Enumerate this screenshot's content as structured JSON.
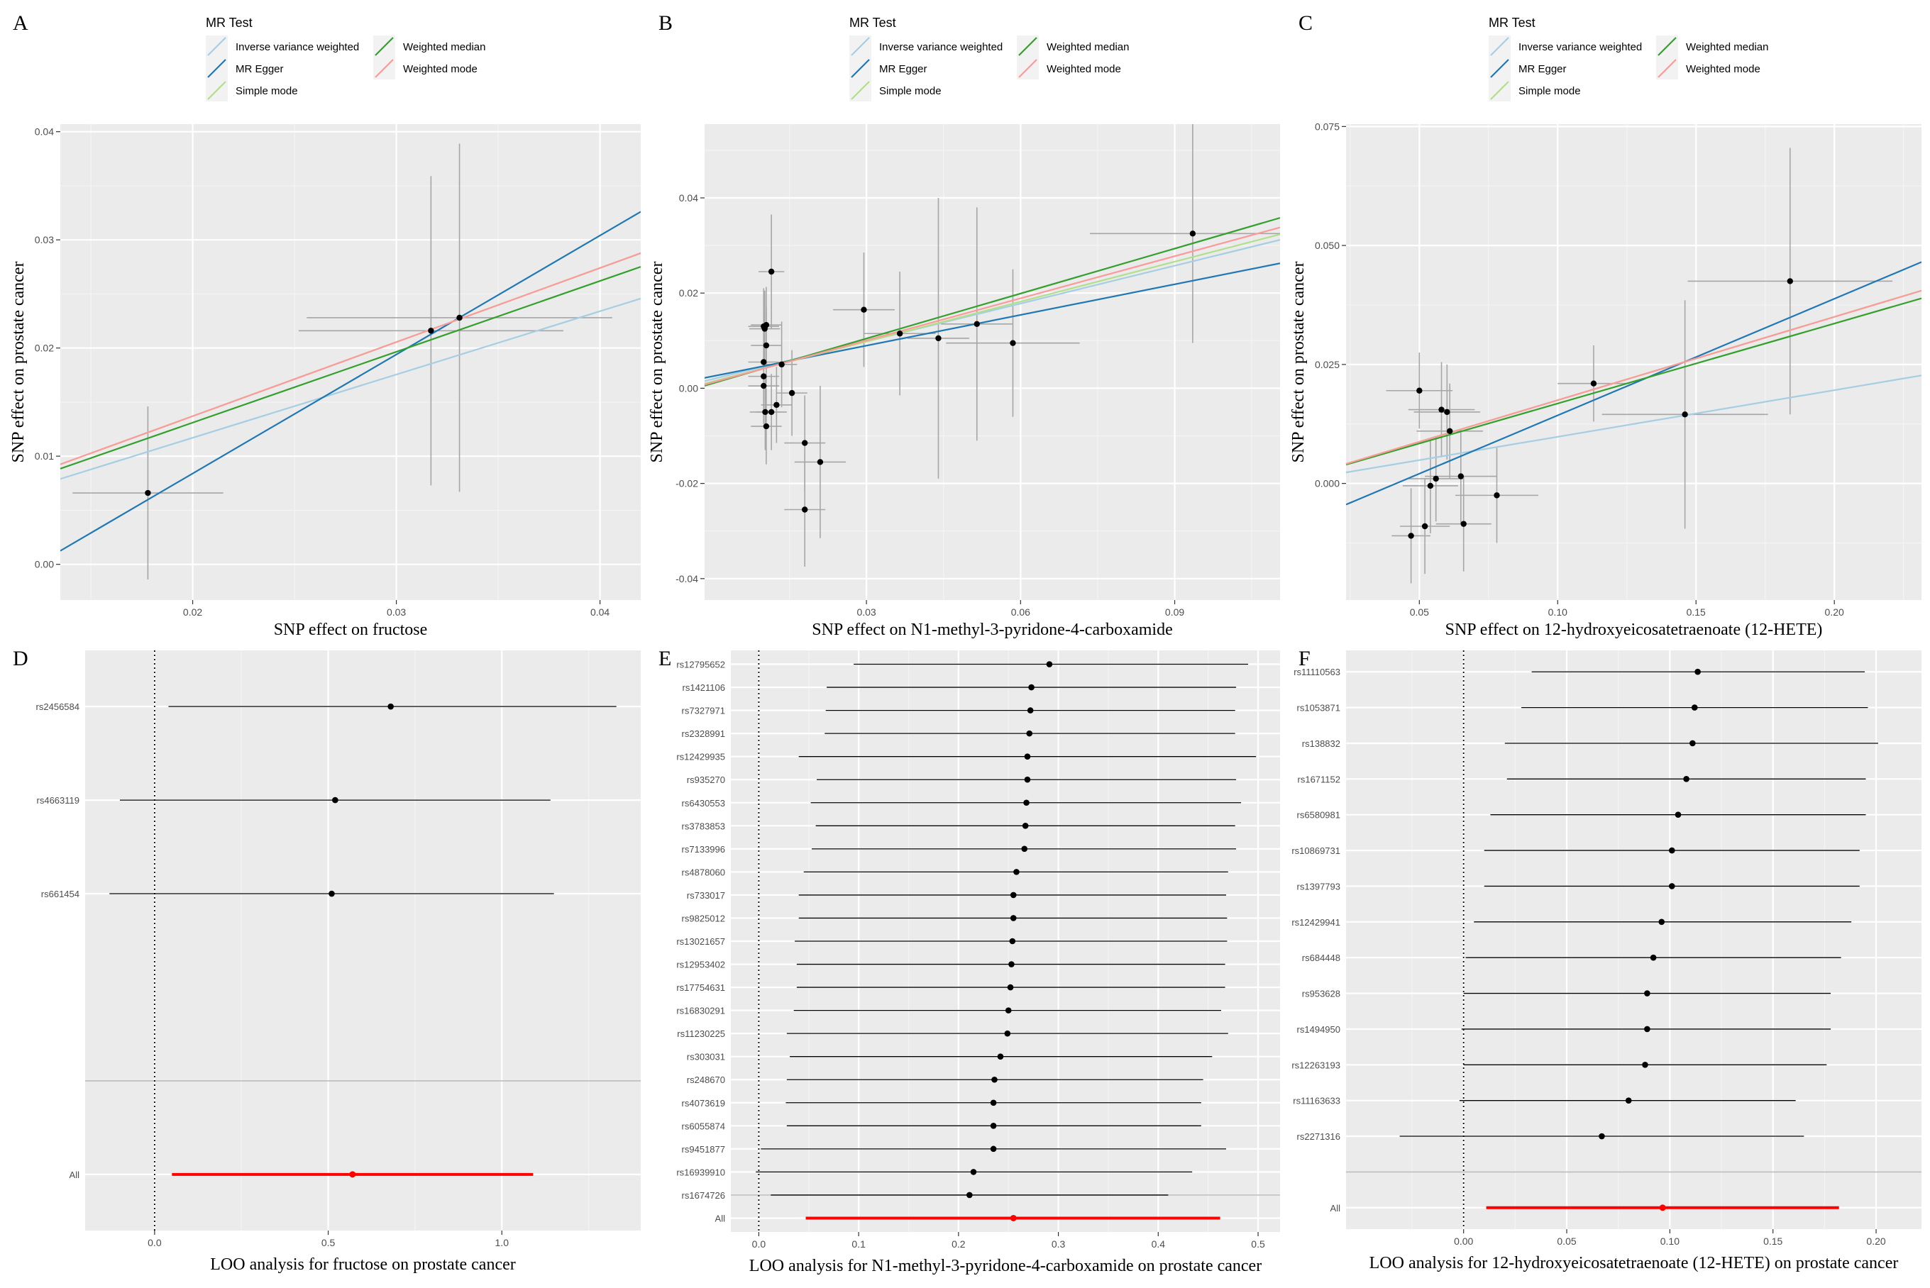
{
  "colors": {
    "panel_bg": "#ebebeb",
    "grid_major": "#ffffff",
    "grid_minor": "#f4f4f4",
    "point": "#000000",
    "errorbar": "#a6a6a6",
    "loo_line": "#000000",
    "loo_all": "#ff0000",
    "ivw": "#a6cee3",
    "egger": "#1f78b4",
    "simple_mode": "#b2df8a",
    "weighted_median": "#33a02c",
    "weighted_mode": "#fb9a99"
  },
  "legend": {
    "title": "MR Test",
    "items": [
      {
        "key": "ivw",
        "label": "Inverse variance weighted"
      },
      {
        "key": "egger",
        "label": "MR Egger"
      },
      {
        "key": "simple_mode",
        "label": "Simple mode"
      },
      {
        "key": "weighted_median",
        "label": "Weighted median"
      },
      {
        "key": "weighted_mode",
        "label": "Weighted mode"
      }
    ]
  },
  "chart_data": [
    {
      "panel": "A",
      "type": "scatter",
      "xlabel": "SNP effect on fructose",
      "ylabel": "SNP effect on prostate cancer",
      "xlim": [
        0.0135,
        0.042
      ],
      "ylim": [
        -0.0033,
        0.0407
      ],
      "xticks": [
        0.02,
        0.03,
        0.04
      ],
      "xtick_labels": [
        "0.02",
        "0.03",
        "0.04"
      ],
      "yticks": [
        0.0,
        0.01,
        0.02,
        0.03,
        0.04
      ],
      "ytick_labels": [
        "0.00",
        "0.01",
        "0.02",
        "0.03",
        "0.04"
      ],
      "points": [
        {
          "x": 0.0178,
          "y": 0.0066,
          "xerr": 0.0037,
          "yerr": 0.008
        },
        {
          "x": 0.0317,
          "y": 0.0216,
          "xerr": 0.0065,
          "yerr": 0.0143
        },
        {
          "x": 0.0331,
          "y": 0.0228,
          "xerr": 0.0075,
          "yerr": 0.0161
        }
      ],
      "lines": [
        {
          "key": "ivw",
          "slope": 0.585,
          "intercept": 0
        },
        {
          "key": "egger",
          "slope": 1.1,
          "intercept": -0.0136
        },
        {
          "key": "simple_mode",
          "slope": 0.685,
          "intercept": 0
        },
        {
          "key": "weighted_median",
          "slope": 0.655,
          "intercept": 0
        },
        {
          "key": "weighted_mode",
          "slope": 0.685,
          "intercept": 0
        }
      ]
    },
    {
      "panel": "B",
      "type": "scatter",
      "xlabel": "SNP effect on N1-methyl-3-pyridone-4-carboxamide",
      "ylabel": "SNP effect on prostate cancer",
      "xlim": [
        -0.0015,
        0.1105
      ],
      "ylim": [
        -0.0445,
        0.0555
      ],
      "xticks": [
        0.03,
        0.06,
        0.09
      ],
      "xtick_labels": [
        "0.03",
        "0.06",
        "0.09"
      ],
      "yticks": [
        -0.04,
        -0.02,
        0.0,
        0.02,
        0.04
      ],
      "ytick_labels": [
        "-0.04",
        "-0.02",
        "0.00",
        "0.02",
        "0.04"
      ],
      "points": [
        {
          "x": 0.01,
          "y": 0.013,
          "xerr": 0.003,
          "yerr": 0.008
        },
        {
          "x": 0.0102,
          "y": 0.0125,
          "xerr": 0.003,
          "yerr": 0.008
        },
        {
          "x": 0.0105,
          "y": 0.0133,
          "xerr": 0.003,
          "yerr": 0.008
        },
        {
          "x": 0.01,
          "y": 0.0055,
          "xerr": 0.003,
          "yerr": 0.008
        },
        {
          "x": 0.01,
          "y": 0.0005,
          "xerr": 0.003,
          "yerr": 0.008
        },
        {
          "x": 0.01,
          "y": 0.0025,
          "xerr": 0.003,
          "yerr": 0.008
        },
        {
          "x": 0.0105,
          "y": 0.009,
          "xerr": 0.003,
          "yerr": 0.008
        },
        {
          "x": 0.0103,
          "y": -0.005,
          "xerr": 0.003,
          "yerr": 0.008
        },
        {
          "x": 0.0105,
          "y": -0.008,
          "xerr": 0.003,
          "yerr": 0.008
        },
        {
          "x": 0.0115,
          "y": 0.0245,
          "xerr": 0.0025,
          "yerr": 0.012
        },
        {
          "x": 0.0115,
          "y": -0.005,
          "xerr": 0.003,
          "yerr": 0.008
        },
        {
          "x": 0.0125,
          "y": -0.0035,
          "xerr": 0.003,
          "yerr": 0.008
        },
        {
          "x": 0.0135,
          "y": 0.005,
          "xerr": 0.003,
          "yerr": 0.009
        },
        {
          "x": 0.0155,
          "y": -0.001,
          "xerr": 0.003,
          "yerr": 0.009
        },
        {
          "x": 0.018,
          "y": -0.0115,
          "xerr": 0.004,
          "yerr": 0.01
        },
        {
          "x": 0.018,
          "y": -0.0255,
          "xerr": 0.004,
          "yerr": 0.012
        },
        {
          "x": 0.021,
          "y": -0.0155,
          "xerr": 0.005,
          "yerr": 0.016
        },
        {
          "x": 0.0295,
          "y": 0.0165,
          "xerr": 0.006,
          "yerr": 0.012
        },
        {
          "x": 0.0365,
          "y": 0.0115,
          "xerr": 0.007,
          "yerr": 0.013
        },
        {
          "x": 0.044,
          "y": 0.0105,
          "xerr": 0.006,
          "yerr": 0.0295
        },
        {
          "x": 0.0515,
          "y": 0.0135,
          "xerr": 0.007,
          "yerr": 0.0245
        },
        {
          "x": 0.0585,
          "y": 0.0095,
          "xerr": 0.013,
          "yerr": 0.0155
        },
        {
          "x": 0.0935,
          "y": 0.0325,
          "xerr": 0.02,
          "yerr": 0.023
        }
      ],
      "lines": [
        {
          "key": "ivw",
          "slope": 0.265,
          "intercept": 0.0019
        },
        {
          "key": "egger",
          "slope": 0.215,
          "intercept": 0.0025
        },
        {
          "key": "simple_mode",
          "slope": 0.28,
          "intercept": 0.0014
        },
        {
          "key": "weighted_median",
          "slope": 0.315,
          "intercept": 0.001
        },
        {
          "key": "weighted_mode",
          "slope": 0.295,
          "intercept": 0.0012
        }
      ]
    },
    {
      "panel": "C",
      "type": "scatter",
      "xlabel": "SNP effect on 12-hydroxyeicosatetraenoate (12-HETE)",
      "ylabel": "SNP effect on prostate cancer",
      "xlim": [
        0.0235,
        0.2315
      ],
      "ylim": [
        -0.0245,
        0.0755
      ],
      "xticks": [
        0.05,
        0.1,
        0.15,
        0.2
      ],
      "xtick_labels": [
        "0.05",
        "0.10",
        "0.15",
        "0.20"
      ],
      "yticks": [
        0.0,
        0.025,
        0.05,
        0.075
      ],
      "ytick_labels": [
        "0.000",
        "0.025",
        "0.050",
        "0.075"
      ],
      "points": [
        {
          "x": 0.047,
          "y": -0.011,
          "xerr": 0.007,
          "yerr": 0.01
        },
        {
          "x": 0.05,
          "y": 0.0195,
          "xerr": 0.012,
          "yerr": 0.008
        },
        {
          "x": 0.052,
          "y": -0.009,
          "xerr": 0.009,
          "yerr": 0.01
        },
        {
          "x": 0.054,
          "y": -0.0005,
          "xerr": 0.01,
          "yerr": 0.01
        },
        {
          "x": 0.056,
          "y": 0.001,
          "xerr": 0.01,
          "yerr": 0.009
        },
        {
          "x": 0.058,
          "y": 0.0155,
          "xerr": 0.012,
          "yerr": 0.01
        },
        {
          "x": 0.06,
          "y": 0.015,
          "xerr": 0.012,
          "yerr": 0.01
        },
        {
          "x": 0.061,
          "y": 0.011,
          "xerr": 0.012,
          "yerr": 0.01
        },
        {
          "x": 0.065,
          "y": 0.0015,
          "xerr": 0.013,
          "yerr": 0.01
        },
        {
          "x": 0.066,
          "y": -0.0085,
          "xerr": 0.01,
          "yerr": 0.01
        },
        {
          "x": 0.078,
          "y": -0.0025,
          "xerr": 0.015,
          "yerr": 0.01
        },
        {
          "x": 0.113,
          "y": 0.021,
          "xerr": 0.013,
          "yerr": 0.008
        },
        {
          "x": 0.146,
          "y": 0.0145,
          "xerr": 0.03,
          "yerr": 0.024
        },
        {
          "x": 0.184,
          "y": 0.0425,
          "xerr": 0.037,
          "yerr": 0.028
        }
      ],
      "lines": [
        {
          "key": "ivw",
          "slope": 0.098,
          "intercept": 0
        },
        {
          "key": "egger",
          "slope": 0.245,
          "intercept": -0.0102
        },
        {
          "key": "simple_mode",
          "slope": 0.175,
          "intercept": 0
        },
        {
          "key": "weighted_median",
          "slope": 0.168,
          "intercept": 0
        },
        {
          "key": "weighted_mode",
          "slope": 0.175,
          "intercept": 0
        }
      ]
    },
    {
      "panel": "D",
      "type": "forest",
      "xlabel": "LOO analysis for fructose on prostate cancer",
      "xlim": [
        -0.2,
        1.4
      ],
      "xticks": [
        0.0,
        0.5,
        1.0
      ],
      "xtick_labels": [
        "0.0",
        "0.5",
        "1.0"
      ],
      "n_slots": 6,
      "rows": [
        {
          "label": "rs2456584",
          "est": 0.68,
          "lo": 0.04,
          "hi": 1.33
        },
        {
          "label": "rs4663119",
          "est": 0.52,
          "lo": -0.1,
          "hi": 1.14
        },
        {
          "label": "rs661454",
          "est": 0.51,
          "lo": -0.13,
          "hi": 1.15
        }
      ],
      "all": {
        "label": "All",
        "est": 0.57,
        "lo": 0.05,
        "hi": 1.09
      }
    },
    {
      "panel": "E",
      "type": "forest",
      "xlabel": "LOO analysis for N1-methyl-3-pyridone-4-carboxamide on prostate cancer",
      "xlim": [
        -0.028,
        0.522
      ],
      "xticks": [
        0.0,
        0.1,
        0.2,
        0.3,
        0.4,
        0.5
      ],
      "xtick_labels": [
        "0.0",
        "0.1",
        "0.2",
        "0.3",
        "0.4",
        "0.5"
      ],
      "n_slots": 25,
      "rows": [
        {
          "label": "rs12795652",
          "est": 0.291,
          "lo": 0.095,
          "hi": 0.49
        },
        {
          "label": "rs1421106",
          "est": 0.273,
          "lo": 0.068,
          "hi": 0.478
        },
        {
          "label": "rs7327971",
          "est": 0.272,
          "lo": 0.067,
          "hi": 0.477
        },
        {
          "label": "rs2328991",
          "est": 0.271,
          "lo": 0.066,
          "hi": 0.477
        },
        {
          "label": "rs12429935",
          "est": 0.269,
          "lo": 0.04,
          "hi": 0.498
        },
        {
          "label": "rs935270",
          "est": 0.269,
          "lo": 0.058,
          "hi": 0.478
        },
        {
          "label": "rs6430553",
          "est": 0.268,
          "lo": 0.052,
          "hi": 0.483
        },
        {
          "label": "rs3783853",
          "est": 0.267,
          "lo": 0.057,
          "hi": 0.477
        },
        {
          "label": "rs7133996",
          "est": 0.266,
          "lo": 0.053,
          "hi": 0.478
        },
        {
          "label": "rs4878060",
          "est": 0.258,
          "lo": 0.045,
          "hi": 0.47
        },
        {
          "label": "rs733017",
          "est": 0.255,
          "lo": 0.04,
          "hi": 0.468
        },
        {
          "label": "rs9825012",
          "est": 0.255,
          "lo": 0.04,
          "hi": 0.469
        },
        {
          "label": "rs13021657",
          "est": 0.254,
          "lo": 0.036,
          "hi": 0.469
        },
        {
          "label": "rs12953402",
          "est": 0.253,
          "lo": 0.038,
          "hi": 0.467
        },
        {
          "label": "rs17754631",
          "est": 0.252,
          "lo": 0.038,
          "hi": 0.467
        },
        {
          "label": "rs16830291",
          "est": 0.25,
          "lo": 0.035,
          "hi": 0.463
        },
        {
          "label": "rs11230225",
          "est": 0.249,
          "lo": 0.028,
          "hi": 0.47
        },
        {
          "label": "rs303031",
          "est": 0.242,
          "lo": 0.031,
          "hi": 0.454
        },
        {
          "label": "rs248670",
          "est": 0.236,
          "lo": 0.028,
          "hi": 0.445
        },
        {
          "label": "rs4073619",
          "est": 0.235,
          "lo": 0.027,
          "hi": 0.443
        },
        {
          "label": "rs6055874",
          "est": 0.235,
          "lo": 0.028,
          "hi": 0.443
        },
        {
          "label": "rs9451877",
          "est": 0.235,
          "lo": 0.002,
          "hi": 0.468
        },
        {
          "label": "rs16939910",
          "est": 0.215,
          "lo": -0.003,
          "hi": 0.434
        },
        {
          "label": "rs1674726",
          "est": 0.211,
          "lo": 0.012,
          "hi": 0.41
        }
      ],
      "all": {
        "label": "All",
        "est": 0.255,
        "lo": 0.047,
        "hi": 0.462
      }
    },
    {
      "panel": "F",
      "type": "forest",
      "xlabel": "LOO analysis for 12-hydroxyeicosatetraenoate (12-HETE) on prostate cancer",
      "xlim": [
        -0.057,
        0.222
      ],
      "xticks": [
        0.0,
        0.05,
        0.1,
        0.15,
        0.2
      ],
      "xtick_labels": [
        "0.00",
        "0.05",
        "0.10",
        "0.15",
        "0.20"
      ],
      "n_slots": 16,
      "rows": [
        {
          "label": "rs11110563",
          "est": 0.1135,
          "lo": 0.033,
          "hi": 0.1945
        },
        {
          "label": "rs1053871",
          "est": 0.112,
          "lo": 0.028,
          "hi": 0.196
        },
        {
          "label": "rs138832",
          "est": 0.111,
          "lo": 0.02,
          "hi": 0.201
        },
        {
          "label": "rs1671152",
          "est": 0.108,
          "lo": 0.021,
          "hi": 0.195
        },
        {
          "label": "rs6580981",
          "est": 0.104,
          "lo": 0.013,
          "hi": 0.195
        },
        {
          "label": "rs10869731",
          "est": 0.101,
          "lo": 0.01,
          "hi": 0.192
        },
        {
          "label": "rs1397793",
          "est": 0.101,
          "lo": 0.01,
          "hi": 0.192
        },
        {
          "label": "rs12429941",
          "est": 0.096,
          "lo": 0.005,
          "hi": 0.188
        },
        {
          "label": "rs684448",
          "est": 0.092,
          "lo": 0.001,
          "hi": 0.183
        },
        {
          "label": "rs953628",
          "est": 0.089,
          "lo": 0.0,
          "hi": 0.178
        },
        {
          "label": "rs1494950",
          "est": 0.089,
          "lo": -0.001,
          "hi": 0.178
        },
        {
          "label": "rs12263193",
          "est": 0.088,
          "lo": 0.0,
          "hi": 0.176
        },
        {
          "label": "rs11163633",
          "est": 0.08,
          "lo": -0.002,
          "hi": 0.161
        },
        {
          "label": "rs2271316",
          "est": 0.067,
          "lo": -0.031,
          "hi": 0.165
        }
      ],
      "all": {
        "label": "All",
        "est": 0.0965,
        "lo": 0.011,
        "hi": 0.182
      }
    }
  ]
}
